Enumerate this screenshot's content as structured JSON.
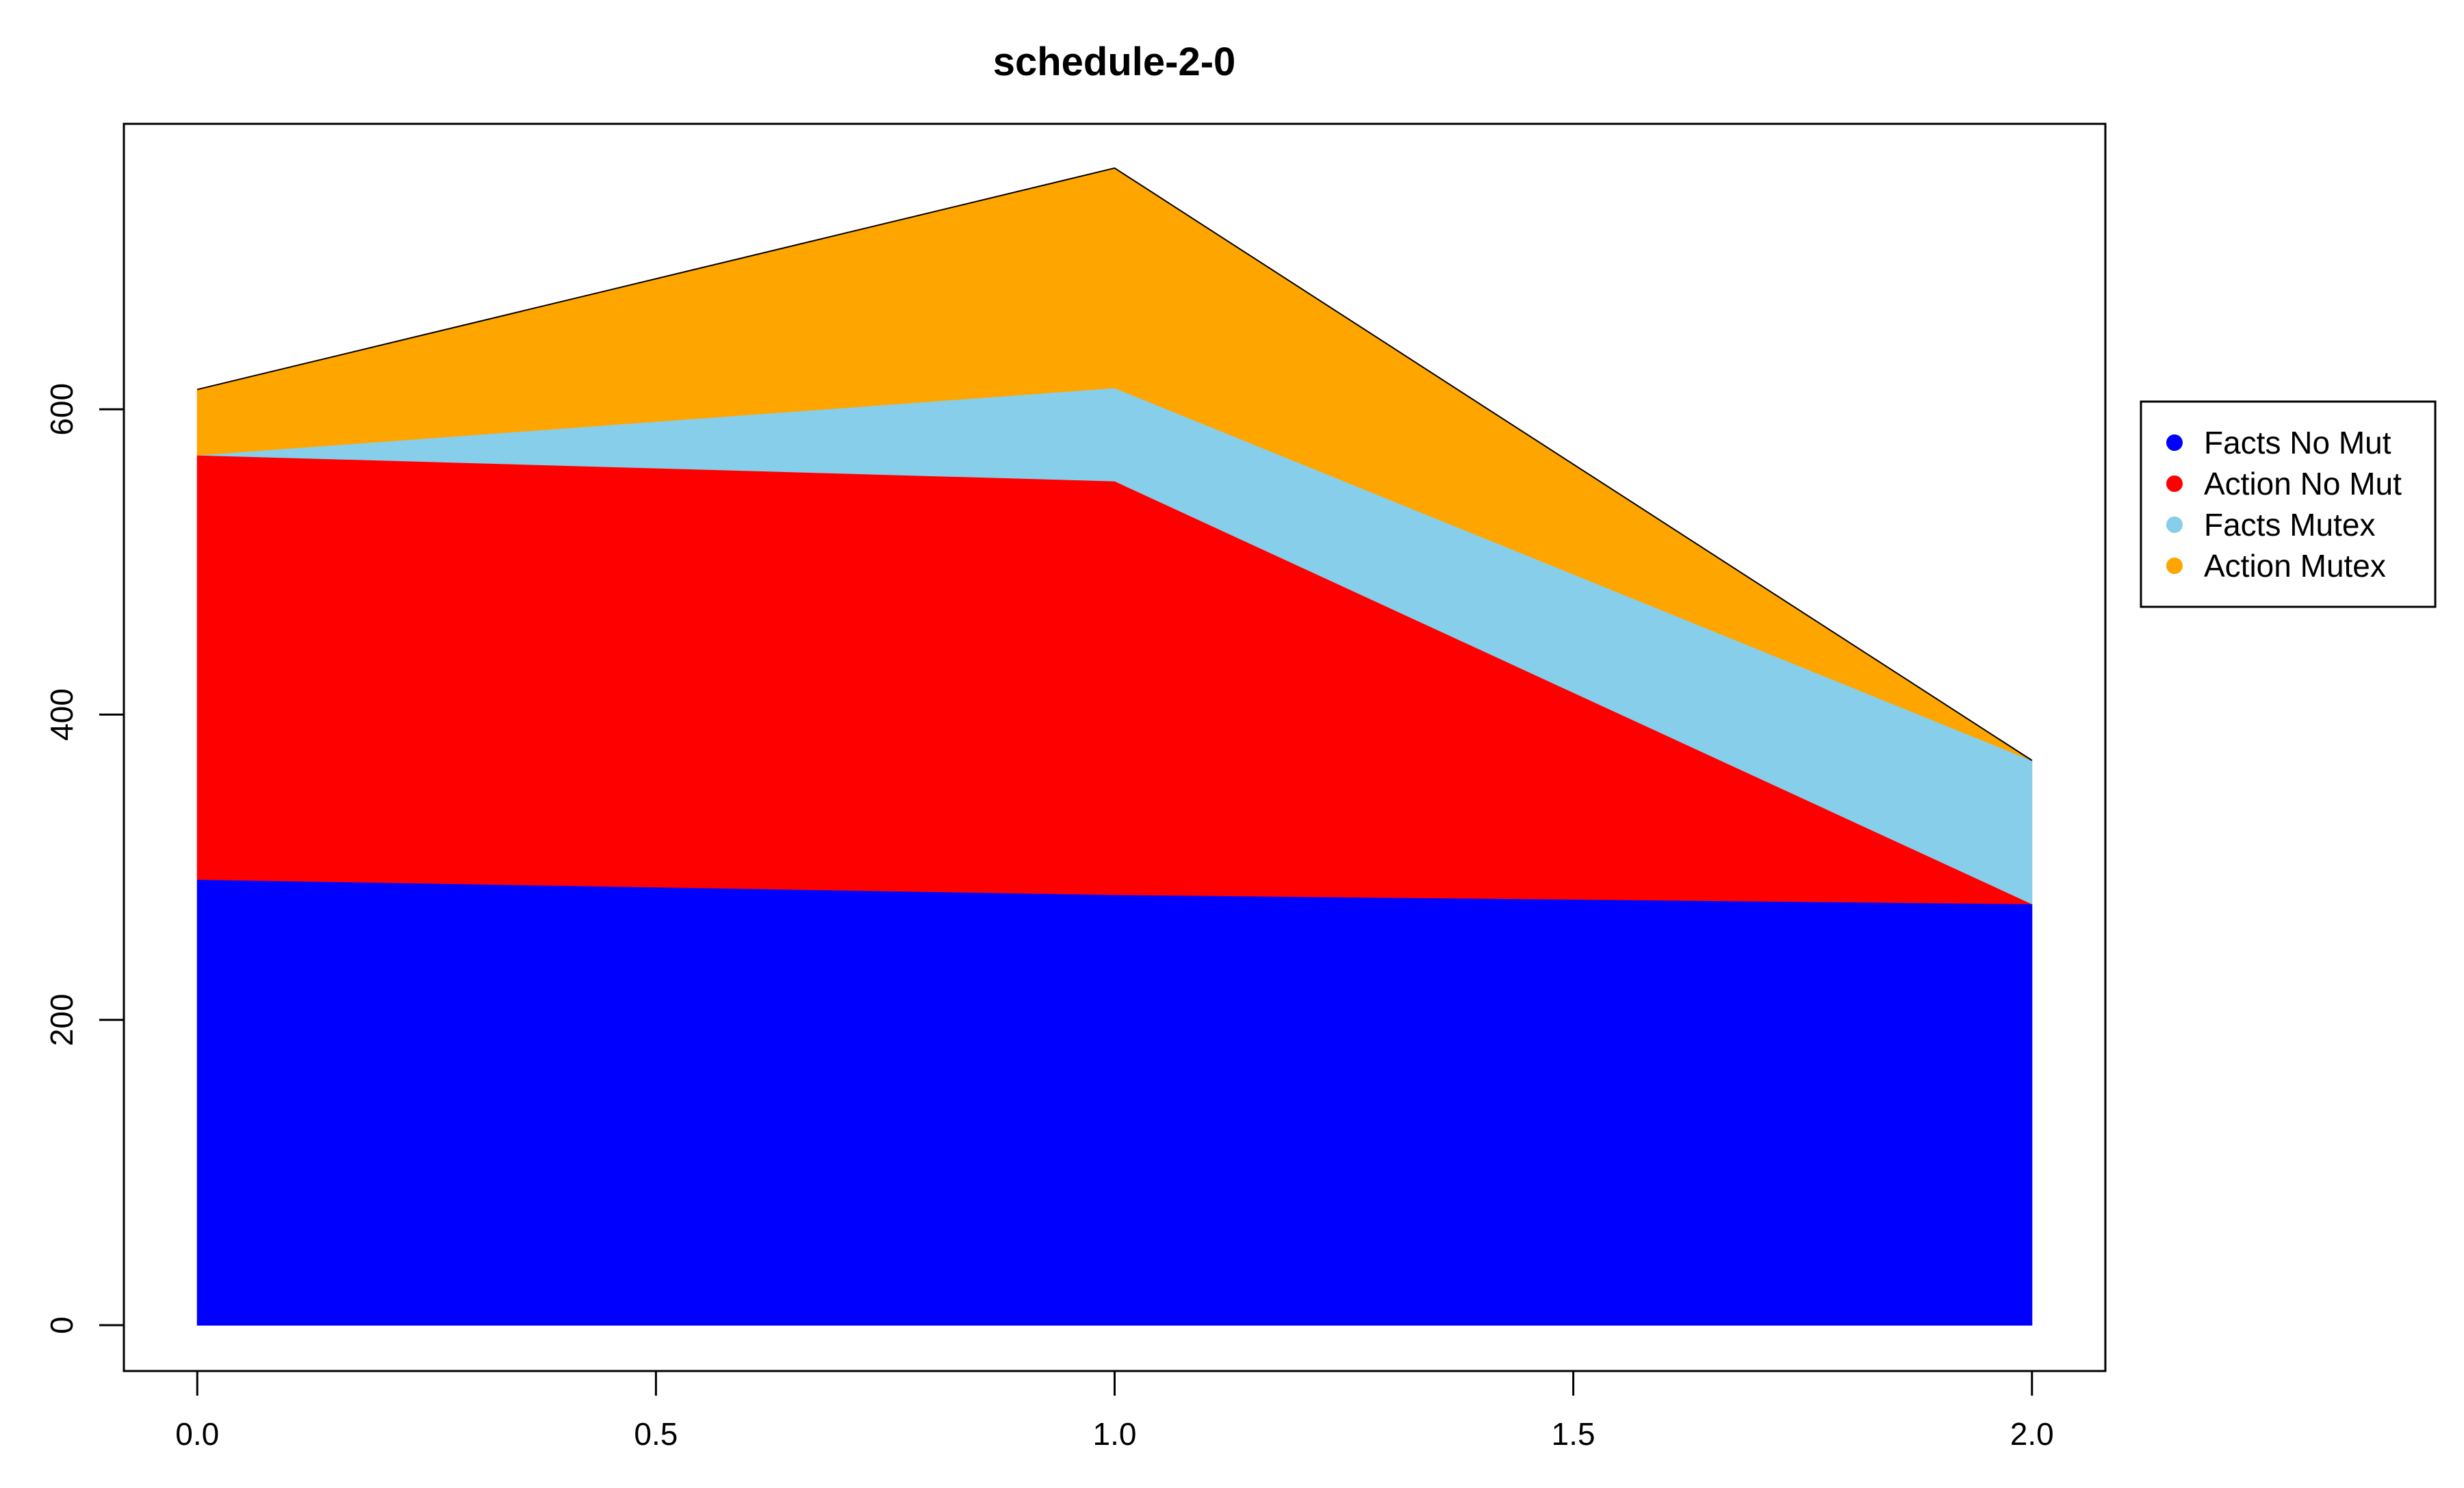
{
  "chart_data": {
    "type": "area",
    "stacked": true,
    "title": "schedule-2-0",
    "xlabel": "",
    "ylabel": "",
    "x": [
      0.0,
      1.0,
      2.0
    ],
    "xticks": [
      "0.0",
      "0.5",
      "1.0",
      "1.5",
      "2.0"
    ],
    "xtick_values": [
      0.0,
      0.5,
      1.0,
      1.5,
      2.0
    ],
    "yticks": [
      "0",
      "200",
      "400",
      "600"
    ],
    "ytick_values": [
      0,
      200,
      400,
      600
    ],
    "xlim": [
      -0.08,
      2.08
    ],
    "ylim": [
      -30,
      787
    ],
    "grid": false,
    "legend_position": "right",
    "series": [
      {
        "name": "Facts No Mut",
        "color": "#0000FF",
        "values": [
          292,
          282,
          276
        ]
      },
      {
        "name": "Action No Mut",
        "color": "#FF0000",
        "values": [
          278,
          271,
          0
        ]
      },
      {
        "name": "Facts Mutex",
        "color": "#87CEEB",
        "values": [
          0,
          61,
          94
        ]
      },
      {
        "name": "Action Mutex",
        "color": "#FFA500",
        "values": [
          43,
          144,
          0
        ]
      }
    ]
  }
}
